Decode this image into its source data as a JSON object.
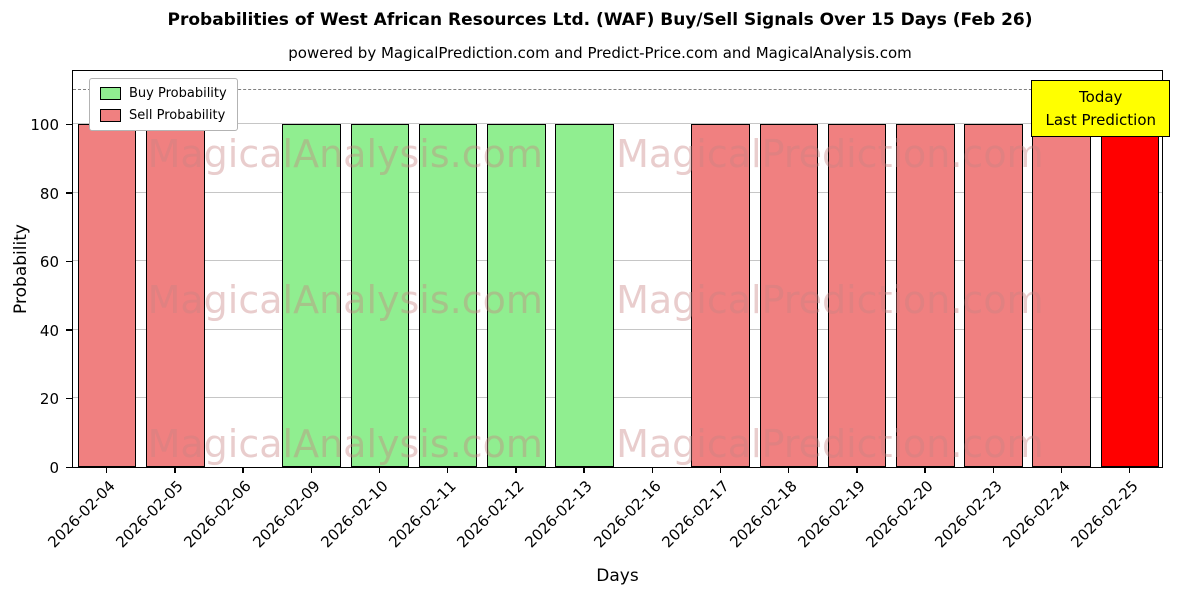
{
  "chart_data": {
    "type": "bar",
    "title": "Probabilities of West African Resources Ltd. (WAF) Buy/Sell Signals Over 15 Days (Feb 26)",
    "subtitle": "powered by MagicalPrediction.com and Predict-Price.com and MagicalAnalysis.com",
    "xlabel": "Days",
    "ylabel": "Probability",
    "categories": [
      "2026-02-04",
      "2026-02-05",
      "2026-02-06",
      "2026-02-09",
      "2026-02-10",
      "2026-02-11",
      "2026-02-12",
      "2026-02-13",
      "2026-02-16",
      "2026-02-17",
      "2026-02-18",
      "2026-02-19",
      "2026-02-20",
      "2026-02-23",
      "2026-02-24",
      "2026-02-25"
    ],
    "values": [
      100,
      100,
      null,
      100,
      100,
      100,
      100,
      100,
      null,
      100,
      100,
      100,
      100,
      100,
      100,
      100
    ],
    "signals": [
      "sell",
      "sell",
      "none",
      "buy",
      "buy",
      "buy",
      "buy",
      "buy",
      "none",
      "sell",
      "sell",
      "sell",
      "sell",
      "sell",
      "sell",
      "today"
    ],
    "colors": {
      "buy": "#90EE90",
      "sell": "#F08080",
      "today": "#FF0000"
    },
    "yticks": [
      0,
      20,
      40,
      60,
      80,
      100
    ],
    "ylim": [
      0,
      116
    ],
    "dashed_line_y": 110,
    "grid": "horizontal",
    "legend": [
      {
        "label": "Buy Probability",
        "color": "#90EE90"
      },
      {
        "label": "Sell Probability",
        "color": "#F08080"
      }
    ],
    "annotation": {
      "lines": [
        "Today",
        "Last Prediction"
      ],
      "bg": "#FFFF00"
    }
  },
  "watermarks": {
    "texts": [
      "MagicalAnalysis.com",
      "MagicalPrediction.com"
    ],
    "color": "rgba(200,130,130,0.40)"
  }
}
